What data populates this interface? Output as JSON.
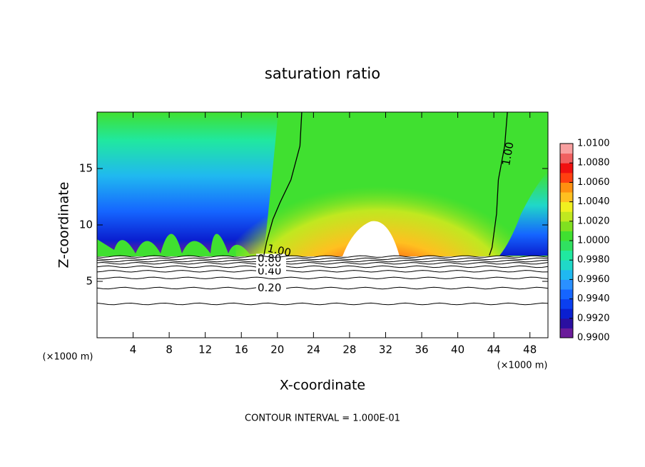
{
  "chart_data": {
    "type": "contour",
    "title": "saturation ratio",
    "x_label": "X-coordinate",
    "y_label": "Z-coordinate",
    "x_unit": "(×1000 m)",
    "footer": "CONTOUR INTERVAL = 1.000E-01",
    "xlim": [
      0,
      50
    ],
    "xticks": [
      4,
      8,
      12,
      16,
      20,
      24,
      28,
      32,
      36,
      40,
      44,
      48
    ],
    "ylim": [
      0,
      20
    ],
    "yticks": [
      5,
      10,
      15
    ],
    "colorbar": {
      "lim": [
        0.99,
        1.01
      ],
      "ticks": [
        {
          "value": 0.99,
          "label": "0.9900"
        },
        {
          "value": 0.992,
          "label": "0.9920"
        },
        {
          "value": 0.994,
          "label": "0.9940"
        },
        {
          "value": 0.996,
          "label": "0.9960"
        },
        {
          "value": 0.998,
          "label": "0.9980"
        },
        {
          "value": 1.0,
          "label": "1.0000"
        },
        {
          "value": 1.002,
          "label": "1.0020"
        },
        {
          "value": 1.004,
          "label": "1.0040"
        },
        {
          "value": 1.006,
          "label": "1.0060"
        },
        {
          "value": 1.008,
          "label": "1.0080"
        },
        {
          "value": 1.01,
          "label": "1.0100"
        }
      ],
      "colors": [
        "#6a1b9a",
        "#2a0fa0",
        "#0a1fd0",
        "#0a3ff0",
        "#1565ff",
        "#2a90ff",
        "#20b8f0",
        "#20d8c8",
        "#20e8a0",
        "#30e060",
        "#40e030",
        "#80e020",
        "#c0e820",
        "#f0f020",
        "#ffc020",
        "#ff9010",
        "#ff4010",
        "#f01010",
        "#f06060",
        "#f8a0a0"
      ]
    },
    "contours": [
      {
        "level": 0.1,
        "z": 3.0
      },
      {
        "level": 0.2,
        "label": "0.20",
        "z": 4.4,
        "label_x": 17.8
      },
      {
        "level": 0.3,
        "z": 5.3
      },
      {
        "level": 0.4,
        "label": "0.40",
        "z": 5.9,
        "label_x": 17.8
      },
      {
        "level": 0.5,
        "z": 6.3
      },
      {
        "level": 0.6,
        "label": "0.60",
        "z": 6.6,
        "label_x": 17.8
      },
      {
        "level": 0.7,
        "z": 6.8
      },
      {
        "level": 0.8,
        "label": "0.80",
        "z": 7.0,
        "label_x": 17.8
      },
      {
        "level": 0.9,
        "z": 7.2
      }
    ],
    "contour_lines": [
      {
        "level": 1.0,
        "label": "1.00",
        "label_x": 20.2,
        "label_y": 7.7,
        "label_angle": 12,
        "x": [
          22.7,
          22.5,
          21.5,
          20.3,
          19.5,
          18.8,
          18.5
        ],
        "y": [
          20,
          17,
          14,
          12,
          10.5,
          8.5,
          7.3
        ]
      },
      {
        "level": 1.0,
        "label": "1.00",
        "label_x": 45.6,
        "label_y": 16.3,
        "label_angle": -80,
        "x": [
          45.5,
          45.2,
          44.5,
          44.3,
          43.8,
          43.5
        ],
        "y": [
          20,
          17,
          14,
          11,
          8,
          7.3
        ]
      }
    ]
  }
}
